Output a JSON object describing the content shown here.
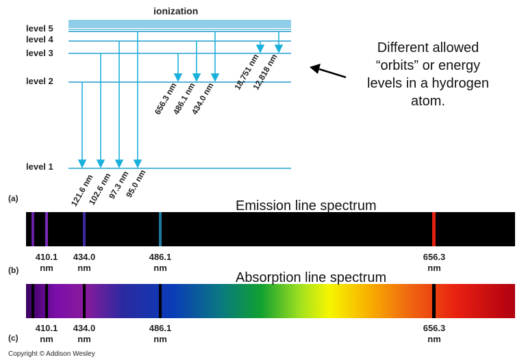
{
  "energy_diagram": {
    "top_label": "ionization",
    "levels": [
      {
        "label": "level 5"
      },
      {
        "label": "level 4"
      },
      {
        "label": "level 3"
      },
      {
        "label": "level 2"
      },
      {
        "label": "level 1"
      }
    ],
    "lyman": [
      "121.6 nm",
      "102.6 nm",
      "97.3 nm",
      "95.0 nm"
    ],
    "balmer": [
      "656.3 nm",
      "486.1 nm",
      "434.0 nm"
    ],
    "paschen": [
      "18,751 nm",
      "12,818 nm"
    ],
    "line_color": "#1f9bd0",
    "arrow_color": "#1ab0dc"
  },
  "note": {
    "lines": [
      "Different allowed",
      "“orbits” or energy",
      "levels in a hydrogen",
      "atom."
    ]
  },
  "panels": {
    "a": "(a)",
    "b": "(b)",
    "c": "(c)"
  },
  "emission": {
    "title": "Emission line spectrum",
    "background": "#000000",
    "lines": [
      {
        "wavelength": "410.1",
        "color": "#6a1fa8"
      },
      {
        "wavelength": "434.0",
        "color": "#3b2aa0"
      },
      {
        "wavelength": "486.1",
        "color": "#1f7aa0"
      },
      {
        "wavelength": "656.3",
        "color": "#e02010"
      }
    ]
  },
  "absorption": {
    "title": "Absorption line spectrum",
    "lines": [
      "410.1",
      "434.0",
      "486.1",
      "656.3"
    ]
  },
  "tick_labels": [
    {
      "value": "410.1",
      "unit": "nm"
    },
    {
      "value": "434.0",
      "unit": "nm"
    },
    {
      "value": "486.1",
      "unit": "nm"
    },
    {
      "value": "656.3",
      "unit": "nm"
    }
  ],
  "copyright": "Copyright © Addison Wesley"
}
